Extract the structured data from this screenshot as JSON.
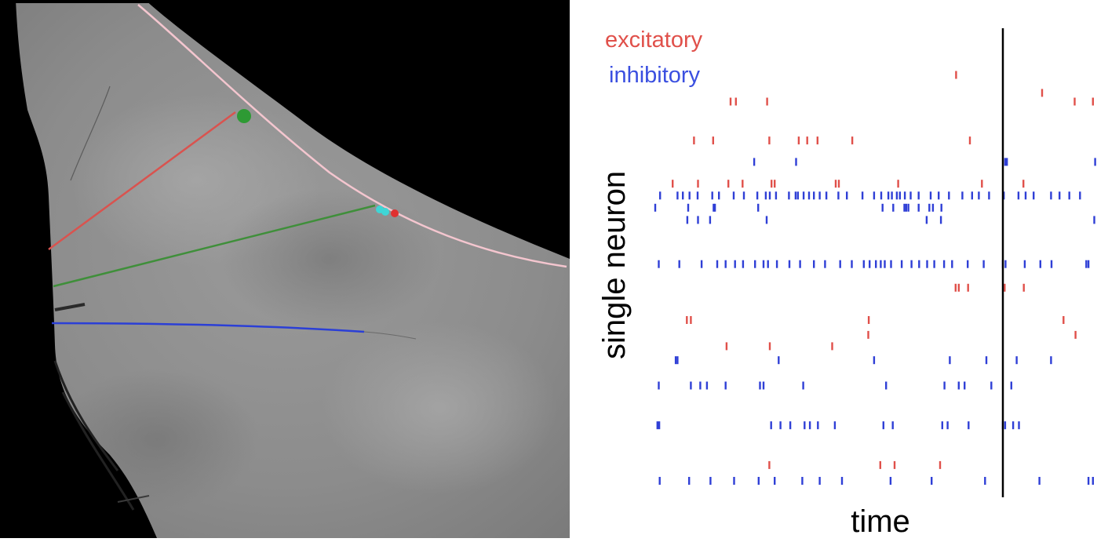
{
  "colors": {
    "excitatory": "#e0504a",
    "inhibitory": "#2f3fd6",
    "event_line": "#000000",
    "whisker_red": "#d9534f",
    "whisker_green": "#3f8f3a",
    "whisker_blue": "#2b3fd6",
    "pole_outline": "#f4c6cf",
    "marker_green": "#2e9a34",
    "marker_cyan": "#3fd6d6",
    "marker_red": "#e03030"
  },
  "chart_data": {
    "type": "scatter",
    "subtype": "spike-raster",
    "title": "",
    "xlabel": "time",
    "ylabel": "single neuron",
    "xlim": [
      0,
      100
    ],
    "ylim": [
      0,
      100
    ],
    "grid": false,
    "legend": {
      "placement": "top-left",
      "entries": [
        "excitatory",
        "inhibitory"
      ]
    },
    "event_time": 78,
    "series": [
      {
        "name": "excitatory",
        "color": "#e0504a",
        "spikes": [
          [
            67.5,
            94.7
          ],
          [
            86.8,
            90.6
          ],
          [
            16.9,
            88.6
          ],
          [
            18.1,
            88.6
          ],
          [
            25.1,
            88.6
          ],
          [
            94.1,
            88.6
          ],
          [
            98.2,
            88.6
          ],
          [
            8.7,
            79.7
          ],
          [
            13.0,
            79.7
          ],
          [
            25.6,
            79.7
          ],
          [
            32.2,
            79.7
          ],
          [
            34.1,
            79.7
          ],
          [
            36.4,
            79.7
          ],
          [
            44.2,
            79.7
          ],
          [
            70.6,
            79.7
          ],
          [
            3.9,
            69.8
          ],
          [
            9.6,
            69.8
          ],
          [
            16.4,
            69.8
          ],
          [
            19.6,
            69.8
          ],
          [
            26.1,
            69.8
          ],
          [
            26.8,
            69.8
          ],
          [
            40.5,
            69.8
          ],
          [
            41.2,
            69.8
          ],
          [
            54.5,
            69.8
          ],
          [
            73.3,
            69.8
          ],
          [
            82.6,
            69.8
          ],
          [
            67.4,
            46.0
          ],
          [
            68.1,
            46.0
          ],
          [
            70.2,
            46.0
          ],
          [
            78.4,
            46.0
          ],
          [
            82.7,
            46.0
          ],
          [
            7.1,
            38.6
          ],
          [
            8.0,
            38.6
          ],
          [
            47.9,
            38.6
          ],
          [
            91.6,
            38.6
          ],
          [
            47.8,
            35.2
          ],
          [
            94.3,
            35.2
          ],
          [
            16.0,
            32.6
          ],
          [
            25.7,
            32.6
          ],
          [
            39.7,
            32.6
          ],
          [
            25.6,
            5.4
          ],
          [
            50.5,
            5.4
          ],
          [
            53.7,
            5.4
          ],
          [
            63.9,
            5.4
          ]
        ]
      },
      {
        "name": "inhibitory",
        "color": "#2f3fd6",
        "spikes": [
          [
            22.2,
            74.8
          ],
          [
            31.6,
            74.8
          ],
          [
            78.5,
            74.8
          ],
          [
            78.9,
            74.8
          ],
          [
            98.7,
            74.8
          ],
          [
            1.1,
            67.1
          ],
          [
            5.0,
            67.1
          ],
          [
            6.2,
            67.1
          ],
          [
            7.7,
            67.1
          ],
          [
            9.5,
            67.1
          ],
          [
            12.8,
            67.1
          ],
          [
            14.3,
            67.1
          ],
          [
            17.6,
            67.1
          ],
          [
            19.9,
            67.1
          ],
          [
            22.9,
            67.1
          ],
          [
            24.8,
            67.1
          ],
          [
            25.7,
            67.1
          ],
          [
            27.1,
            67.1
          ],
          [
            30.0,
            67.1
          ],
          [
            31.5,
            67.1
          ],
          [
            32.0,
            67.1
          ],
          [
            33.3,
            67.1
          ],
          [
            34.5,
            67.1
          ],
          [
            35.6,
            67.1
          ],
          [
            36.9,
            67.1
          ],
          [
            38.4,
            67.1
          ],
          [
            41.1,
            67.1
          ],
          [
            43.0,
            67.1
          ],
          [
            46.5,
            67.1
          ],
          [
            49.1,
            67.1
          ],
          [
            50.7,
            67.1
          ],
          [
            52.3,
            67.1
          ],
          [
            53.1,
            67.1
          ],
          [
            54.2,
            67.1
          ],
          [
            54.9,
            67.1
          ],
          [
            56.0,
            67.1
          ],
          [
            57.3,
            67.1
          ],
          [
            59.1,
            67.1
          ],
          [
            61.8,
            67.1
          ],
          [
            63.6,
            67.1
          ],
          [
            65.9,
            67.1
          ],
          [
            68.9,
            67.1
          ],
          [
            71.1,
            67.1
          ],
          [
            72.6,
            67.1
          ],
          [
            74.9,
            67.1
          ],
          [
            78.2,
            67.1
          ],
          [
            81.5,
            67.1
          ],
          [
            83.1,
            67.1
          ],
          [
            84.9,
            67.1
          ],
          [
            88.8,
            67.1
          ],
          [
            90.7,
            67.1
          ],
          [
            92.9,
            67.1
          ],
          [
            95.3,
            67.1
          ],
          [
            0.0,
            64.3
          ],
          [
            7.4,
            64.3
          ],
          [
            13.1,
            64.3
          ],
          [
            13.4,
            64.3
          ],
          [
            23.1,
            64.3
          ],
          [
            51.0,
            64.3
          ],
          [
            53.4,
            64.3
          ],
          [
            55.9,
            64.3
          ],
          [
            56.3,
            64.3
          ],
          [
            56.8,
            64.3
          ],
          [
            59.1,
            64.3
          ],
          [
            61.5,
            64.3
          ],
          [
            62.3,
            64.3
          ],
          [
            64.2,
            64.3
          ],
          [
            7.2,
            61.5
          ],
          [
            9.6,
            61.5
          ],
          [
            12.3,
            61.5
          ],
          [
            25.0,
            61.5
          ],
          [
            60.9,
            61.5
          ],
          [
            64.1,
            61.5
          ],
          [
            98.5,
            61.5
          ],
          [
            0.8,
            51.4
          ],
          [
            5.4,
            51.4
          ],
          [
            10.4,
            51.4
          ],
          [
            13.9,
            51.4
          ],
          [
            15.8,
            51.4
          ],
          [
            17.9,
            51.4
          ],
          [
            19.7,
            51.4
          ],
          [
            22.4,
            51.4
          ],
          [
            24.3,
            51.4
          ],
          [
            25.3,
            51.4
          ],
          [
            27.3,
            51.4
          ],
          [
            30.1,
            51.4
          ],
          [
            32.5,
            51.4
          ],
          [
            35.6,
            51.4
          ],
          [
            38.1,
            51.4
          ],
          [
            41.5,
            51.4
          ],
          [
            44.1,
            51.4
          ],
          [
            46.8,
            51.4
          ],
          [
            48.1,
            51.4
          ],
          [
            49.5,
            51.4
          ],
          [
            50.6,
            51.4
          ],
          [
            51.5,
            51.4
          ],
          [
            52.9,
            51.4
          ],
          [
            55.3,
            51.4
          ],
          [
            57.5,
            51.4
          ],
          [
            59.2,
            51.4
          ],
          [
            61.0,
            51.4
          ],
          [
            62.6,
            51.4
          ],
          [
            64.8,
            51.4
          ],
          [
            66.6,
            51.4
          ],
          [
            70.1,
            51.4
          ],
          [
            73.7,
            51.4
          ],
          [
            78.0,
            51.4
          ],
          [
            78.6,
            51.4
          ],
          [
            82.9,
            51.4
          ],
          [
            86.4,
            51.4
          ],
          [
            88.9,
            51.4
          ],
          [
            96.7,
            51.4
          ],
          [
            97.2,
            51.4
          ],
          [
            4.6,
            29.4
          ],
          [
            5.0,
            29.4
          ],
          [
            27.7,
            29.4
          ],
          [
            49.1,
            29.4
          ],
          [
            66.1,
            29.4
          ],
          [
            74.3,
            29.4
          ],
          [
            81.1,
            29.4
          ],
          [
            88.8,
            29.4
          ],
          [
            0.8,
            23.6
          ],
          [
            8.0,
            23.6
          ],
          [
            10.1,
            23.6
          ],
          [
            11.6,
            23.6
          ],
          [
            15.8,
            23.6
          ],
          [
            23.5,
            23.6
          ],
          [
            24.3,
            23.6
          ],
          [
            33.2,
            23.6
          ],
          [
            51.8,
            23.6
          ],
          [
            64.9,
            23.6
          ],
          [
            68.1,
            23.6
          ],
          [
            69.4,
            23.6
          ],
          [
            75.4,
            23.6
          ],
          [
            79.9,
            23.6
          ],
          [
            0.5,
            14.5
          ],
          [
            0.9,
            14.5
          ],
          [
            26.0,
            14.5
          ],
          [
            28.1,
            14.5
          ],
          [
            30.3,
            14.5
          ],
          [
            33.5,
            14.5
          ],
          [
            34.7,
            14.5
          ],
          [
            36.5,
            14.5
          ],
          [
            40.3,
            14.5
          ],
          [
            51.2,
            14.5
          ],
          [
            53.3,
            14.5
          ],
          [
            64.4,
            14.5
          ],
          [
            65.6,
            14.5
          ],
          [
            70.3,
            14.5
          ],
          [
            78.0,
            14.5
          ],
          [
            78.5,
            14.5
          ],
          [
            80.3,
            14.5
          ],
          [
            81.6,
            14.5
          ],
          [
            1.0,
            1.8
          ],
          [
            7.6,
            1.8
          ],
          [
            12.4,
            1.8
          ],
          [
            17.7,
            1.8
          ],
          [
            23.2,
            1.8
          ],
          [
            26.8,
            1.8
          ],
          [
            33.0,
            1.8
          ],
          [
            36.9,
            1.8
          ],
          [
            41.9,
            1.8
          ],
          [
            52.8,
            1.8
          ],
          [
            62.0,
            1.8
          ],
          [
            74.0,
            1.8
          ],
          [
            86.2,
            1.8
          ],
          [
            97.2,
            1.8
          ],
          [
            98.2,
            1.8
          ]
        ]
      }
    ]
  }
}
